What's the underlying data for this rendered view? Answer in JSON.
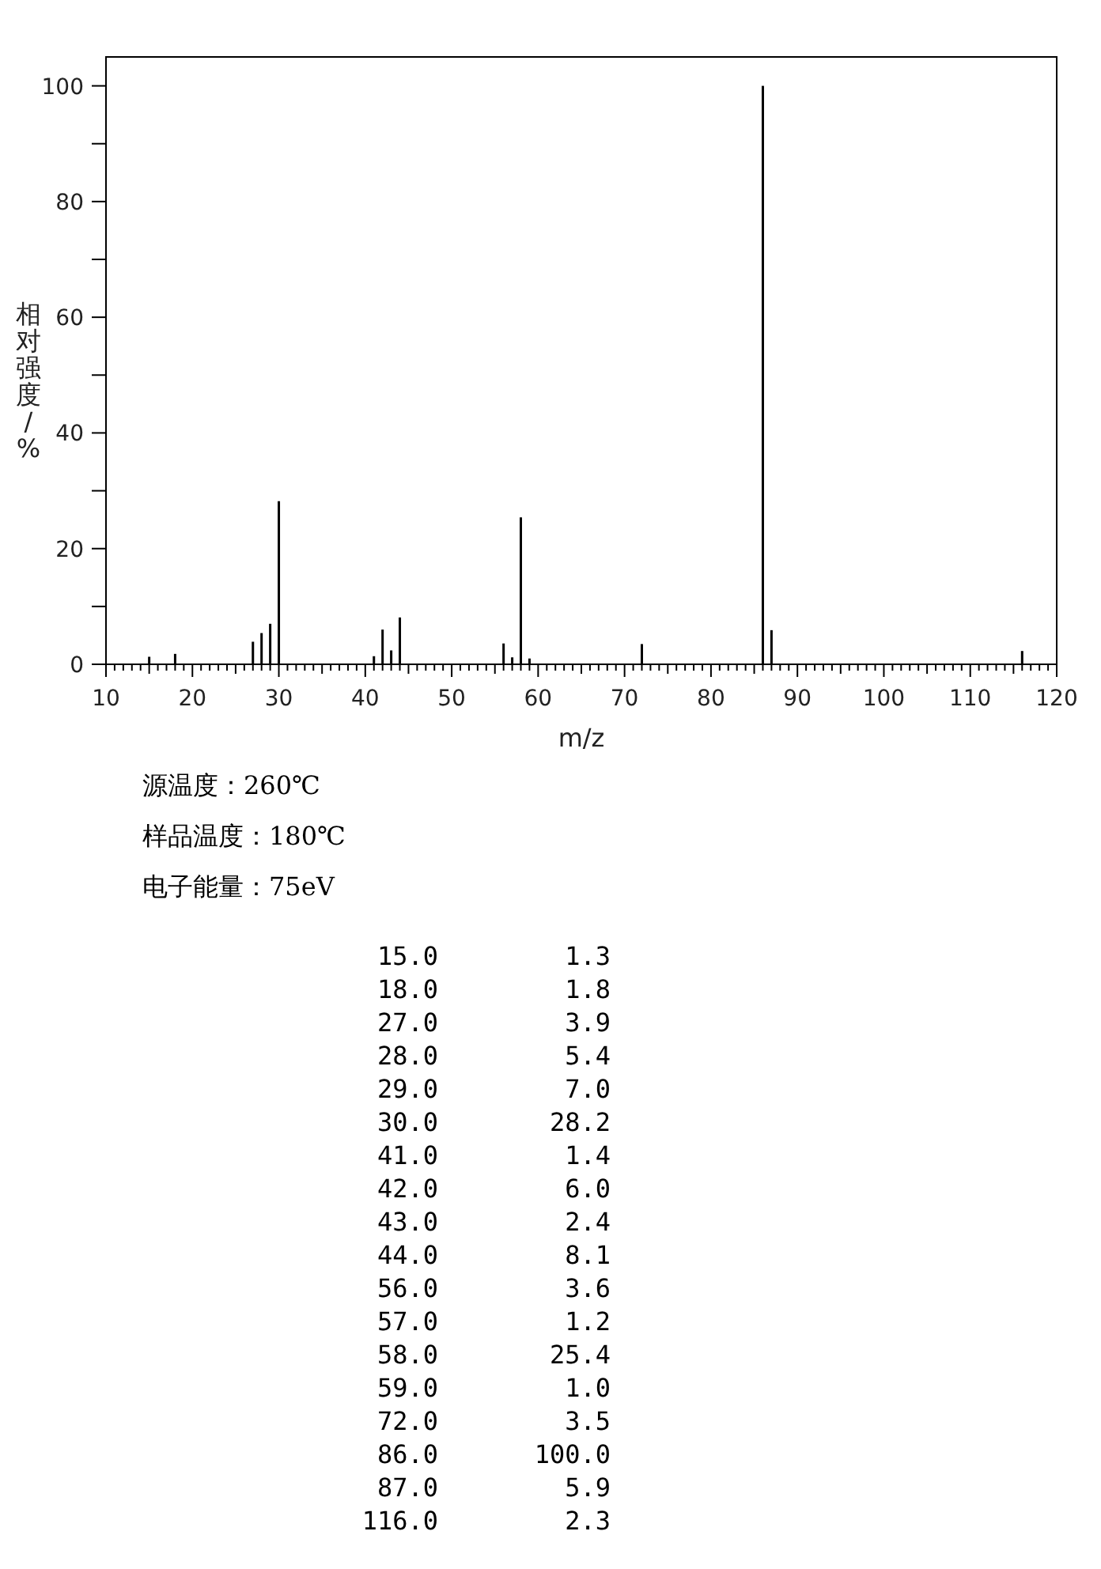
{
  "chart_data": {
    "type": "bar",
    "xlabel": "m/z",
    "ylabel": "相对强度/%",
    "x": [
      15,
      18,
      27,
      28,
      29,
      30,
      41,
      42,
      43,
      44,
      56,
      57,
      58,
      59,
      72,
      86,
      87,
      116
    ],
    "values": [
      1.3,
      1.8,
      3.9,
      5.4,
      7.0,
      28.2,
      1.4,
      6.0,
      2.4,
      8.1,
      3.6,
      1.2,
      25.4,
      1.0,
      3.5,
      100.0,
      5.9,
      2.3
    ],
    "color": "#000000",
    "xlim": [
      10,
      120
    ],
    "ylim": [
      0,
      105
    ],
    "xticks": [
      10,
      {
        "value": 11,
        "label": null
      },
      {
        "value": 12,
        "label": null
      },
      {
        "value": 13,
        "label": null
      },
      {
        "value": 14,
        "label": null
      },
      {
        "value": 15,
        "label": null
      },
      {
        "value": 16,
        "label": null
      },
      {
        "value": 17,
        "label": null
      },
      {
        "value": 18,
        "label": null
      },
      {
        "value": 19,
        "label": null
      },
      20,
      {
        "value": 21,
        "label": null
      },
      {
        "value": 22,
        "label": null
      },
      {
        "value": 23,
        "label": null
      },
      {
        "value": 24,
        "label": null
      },
      {
        "value": 25,
        "label": null
      },
      {
        "value": 26,
        "label": null
      },
      {
        "value": 27,
        "label": null
      },
      {
        "value": 28,
        "label": null
      },
      {
        "value": 29,
        "label": null
      },
      30,
      {
        "value": 31,
        "label": null
      },
      {
        "value": 32,
        "label": null
      },
      {
        "value": 33,
        "label": null
      },
      {
        "value": 34,
        "label": null
      },
      {
        "value": 35,
        "label": null
      },
      {
        "value": 36,
        "label": null
      },
      {
        "value": 37,
        "label": null
      },
      {
        "value": 38,
        "label": null
      },
      {
        "value": 39,
        "label": null
      },
      40,
      {
        "value": 41,
        "label": null
      },
      {
        "value": 42,
        "label": null
      },
      {
        "value": 43,
        "label": null
      },
      {
        "value": 44,
        "label": null
      },
      {
        "value": 45,
        "label": null
      },
      {
        "value": 46,
        "label": null
      },
      {
        "value": 47,
        "label": null
      },
      {
        "value": 48,
        "label": null
      },
      {
        "value": 49,
        "label": null
      },
      50,
      {
        "value": 51,
        "label": null
      },
      {
        "value": 52,
        "label": null
      },
      {
        "value": 53,
        "label": null
      },
      {
        "value": 54,
        "label": null
      },
      {
        "value": 55,
        "label": null
      },
      {
        "value": 56,
        "label": null
      },
      {
        "value": 57,
        "label": null
      },
      {
        "value": 58,
        "label": null
      },
      {
        "value": 59,
        "label": null
      },
      60,
      {
        "value": 61,
        "label": null
      },
      {
        "value": 62,
        "label": null
      },
      {
        "value": 63,
        "label": null
      },
      {
        "value": 64,
        "label": null
      },
      {
        "value": 65,
        "label": null
      },
      {
        "value": 66,
        "label": null
      },
      {
        "value": 67,
        "label": null
      },
      {
        "value": 68,
        "label": null
      },
      {
        "value": 69,
        "label": null
      },
      70,
      {
        "value": 71,
        "label": null
      },
      {
        "value": 72,
        "label": null
      },
      {
        "value": 73,
        "label": null
      },
      {
        "value": 74,
        "label": null
      },
      {
        "value": 75,
        "label": null
      },
      {
        "value": 76,
        "label": null
      },
      {
        "value": 77,
        "label": null
      },
      {
        "value": 78,
        "label": null
      },
      {
        "value": 79,
        "label": null
      },
      80,
      {
        "value": 81,
        "label": null
      },
      {
        "value": 82,
        "label": null
      },
      {
        "value": 83,
        "label": null
      },
      {
        "value": 84,
        "label": null
      },
      {
        "value": 85,
        "label": null
      },
      {
        "value": 86,
        "label": null
      },
      {
        "value": 87,
        "label": null
      },
      {
        "value": 88,
        "label": null
      },
      {
        "value": 89,
        "label": null
      },
      90,
      {
        "value": 91,
        "label": null
      },
      {
        "value": 92,
        "label": null
      },
      {
        "value": 93,
        "label": null
      },
      {
        "value": 94,
        "label": null
      },
      {
        "value": 95,
        "label": null
      },
      {
        "value": 96,
        "label": null
      },
      {
        "value": 97,
        "label": null
      },
      {
        "value": 98,
        "label": null
      },
      {
        "value": 99,
        "label": null
      },
      100,
      {
        "value": 101,
        "label": null
      },
      {
        "value": 102,
        "label": null
      },
      {
        "value": 103,
        "label": null
      },
      {
        "value": 104,
        "label": null
      },
      {
        "value": 105,
        "label": null
      },
      {
        "value": 106,
        "label": null
      },
      {
        "value": 107,
        "label": null
      },
      {
        "value": 108,
        "label": null
      },
      {
        "value": 109,
        "label": null
      },
      110,
      {
        "value": 111,
        "label": null
      },
      {
        "value": 112,
        "label": null
      },
      {
        "value": 113,
        "label": null
      },
      {
        "value": 114,
        "label": null
      },
      {
        "value": 115,
        "label": null
      },
      {
        "value": 116,
        "label": null
      },
      {
        "value": 117,
        "label": null
      },
      {
        "value": 118,
        "label": null
      },
      {
        "value": 119,
        "label": null
      },
      120
    ],
    "yticks": [
      0,
      {
        "value": 10,
        "label": null
      },
      20,
      {
        "value": 30,
        "label": null
      },
      40,
      {
        "value": 50,
        "label": null
      },
      60,
      {
        "value": 70,
        "label": null
      },
      80,
      {
        "value": 90,
        "label": null
      },
      100
    ],
    "annotations": [
      "源温度：260℃",
      "样品温度：180℃",
      "电子能量：75eV",
      "15.0",
      "1.3",
      "18.0",
      "1.8",
      "27.0",
      "3.9",
      "28.0",
      "5.4",
      "29.0",
      "7.0",
      "30.0",
      "28.2",
      "41.0",
      "1.4",
      "42.0",
      "6.0",
      "43.0",
      "2.4",
      "44.0",
      "8.1",
      "56.0",
      "3.6",
      "57.0",
      "1.2",
      "58.0",
      "25.4",
      "59.0",
      "1.0",
      "72.0",
      "3.5",
      "86.0",
      "100.0",
      "87.0",
      "5.9",
      "116.0",
      "2.3"
    ]
  }
}
